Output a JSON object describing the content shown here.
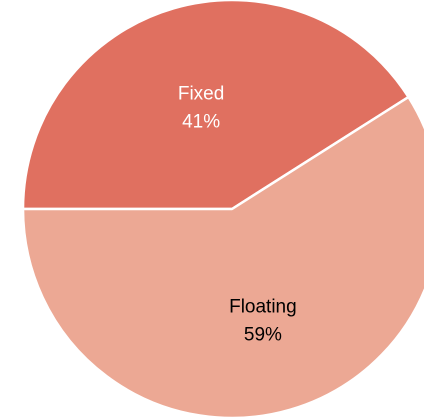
{
  "chart_data": {
    "type": "pie",
    "title": "",
    "slices": [
      {
        "name": "Fixed",
        "value": 41,
        "value_label": "41%",
        "color": "#e07060",
        "label_color": "#ffffff"
      },
      {
        "name": "Floating",
        "value": 59,
        "value_label": "59%",
        "color": "#eca894",
        "label_color": "#000000"
      }
    ],
    "separator_color": "#ffffff",
    "legend": "none"
  }
}
